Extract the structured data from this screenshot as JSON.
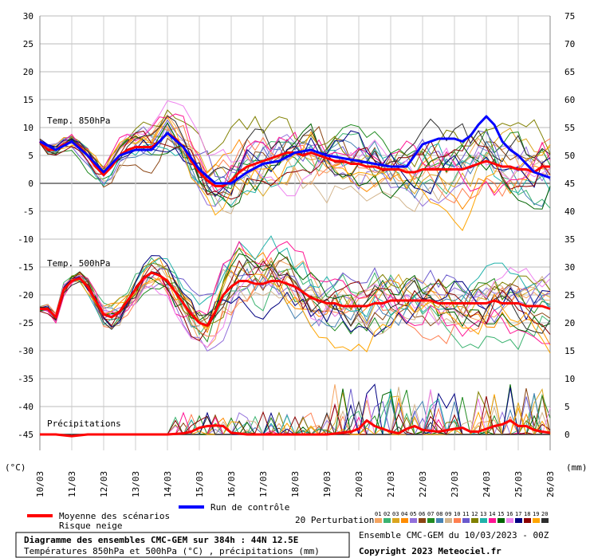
{
  "chart_data": {
    "type": "line",
    "left_axis": {
      "unit": "(°C)",
      "ylim": [
        -50,
        30
      ],
      "ticks": [
        30,
        25,
        20,
        15,
        10,
        5,
        0,
        -5,
        -10,
        -15,
        -20,
        -25,
        -30,
        -35,
        -40,
        -45
      ]
    },
    "right_axis": {
      "unit": "(mm)",
      "ticks": [
        75,
        70,
        65,
        60,
        55,
        50,
        45,
        40,
        35,
        30,
        25,
        20,
        15,
        10,
        5,
        0
      ]
    },
    "x_ticks": [
      "10/03",
      "11/03",
      "12/03",
      "13/03",
      "14/03",
      "15/03",
      "16/03",
      "17/03",
      "18/03",
      "19/03",
      "20/03",
      "21/03",
      "22/03",
      "23/03",
      "24/03",
      "25/03",
      "26/03"
    ],
    "x_range_days": [
      0,
      16
    ],
    "grid": true,
    "section_labels": [
      "Temp. 850hPa",
      "Temp. 500hPa",
      "Précipitations"
    ],
    "series": [
      {
        "name": "Moyenne des scénarios",
        "group": "t850",
        "color": "#ff0000",
        "x": [
          0,
          0.25,
          0.5,
          0.75,
          1,
          1.25,
          1.5,
          1.75,
          2,
          2.25,
          2.5,
          2.75,
          3,
          3.25,
          3.5,
          3.75,
          4,
          4.25,
          4.5,
          4.75,
          5,
          5.25,
          5.5,
          5.75,
          6,
          6.25,
          6.5,
          6.75,
          7,
          7.25,
          7.5,
          7.75,
          8,
          8.25,
          8.5,
          8.75,
          9,
          9.25,
          9.5,
          9.75,
          10,
          10.25,
          10.5,
          10.75,
          11,
          11.25,
          11.5,
          11.75,
          12,
          12.25,
          12.5,
          12.75,
          13,
          13.25,
          13.5,
          13.75,
          14,
          14.25,
          14.5,
          14.75,
          15,
          15.25,
          15.5,
          15.75,
          16
        ],
        "values": [
          7.5,
          6,
          6,
          7,
          7.5,
          6.5,
          5,
          3,
          1.5,
          3,
          5,
          6,
          6.5,
          6.5,
          6.5,
          7.5,
          9,
          8,
          6.5,
          4,
          2,
          0.5,
          -0.5,
          -0.5,
          0.5,
          2,
          3,
          3.5,
          4,
          4.5,
          5,
          5.5,
          5.5,
          5,
          5.5,
          5,
          4.5,
          4,
          4,
          3.5,
          3.5,
          3,
          3,
          2.5,
          2.5,
          2.5,
          2,
          2,
          2.5,
          2.5,
          2.5,
          2.5,
          2.5,
          2.5,
          3,
          3.5,
          4,
          3.5,
          3,
          3,
          2.5,
          2.5,
          2,
          3,
          3
        ]
      },
      {
        "name": "Run de contrôle",
        "group": "t850",
        "color": "#0000ff",
        "x": [
          0,
          0.5,
          1,
          1.5,
          2,
          2.5,
          3,
          3.5,
          4,
          4.5,
          5,
          5.5,
          6,
          6.5,
          7,
          7.5,
          8,
          8.5,
          9,
          9.5,
          10,
          10.5,
          11,
          11.5,
          12,
          12.5,
          13,
          13.25,
          13.5,
          13.75,
          14,
          14.25,
          14.5,
          14.75,
          15,
          15.5,
          16
        ],
        "values": [
          7.5,
          6,
          7.5,
          5,
          2,
          5,
          6,
          6,
          9,
          6.5,
          2.5,
          0,
          0,
          2,
          3.5,
          4,
          5.5,
          6,
          5,
          4.5,
          4,
          3.5,
          3,
          3,
          7,
          8,
          8,
          7.5,
          8.5,
          10.5,
          12,
          10.5,
          7.5,
          6,
          5,
          2,
          1
        ]
      },
      {
        "name": "Moyenne des scénarios",
        "group": "t500",
        "color": "#ff0000",
        "x": [
          0,
          0.25,
          0.5,
          0.75,
          1,
          1.25,
          1.5,
          1.75,
          2,
          2.25,
          2.5,
          2.75,
          3,
          3.25,
          3.5,
          3.75,
          4,
          4.25,
          4.5,
          4.75,
          5,
          5.25,
          5.5,
          5.75,
          6,
          6.25,
          6.5,
          6.75,
          7,
          7.25,
          7.5,
          7.75,
          8,
          8.25,
          8.5,
          8.75,
          9,
          9.25,
          9.5,
          9.75,
          10,
          10.25,
          10.5,
          10.75,
          11,
          11.25,
          11.5,
          11.75,
          12,
          12.25,
          12.5,
          12.75,
          13,
          13.25,
          13.5,
          13.75,
          14,
          14.25,
          14.5,
          14.75,
          15,
          15.25,
          15.5,
          15.75,
          16
        ],
        "values": [
          -22.5,
          -22.5,
          -24,
          -19,
          -17.5,
          -17,
          -18.5,
          -21,
          -23.5,
          -24,
          -23,
          -21,
          -19,
          -17,
          -16,
          -16.5,
          -17.5,
          -19.5,
          -21.5,
          -23.5,
          -25,
          -25.5,
          -23,
          -20,
          -18.5,
          -17.5,
          -17.5,
          -18,
          -18,
          -17.5,
          -17.5,
          -18,
          -18.5,
          -19.5,
          -20.5,
          -21,
          -21.5,
          -21.5,
          -22,
          -22,
          -22,
          -22,
          -21.5,
          -21.5,
          -21,
          -21,
          -21,
          -21,
          -21,
          -21,
          -21.5,
          -21.5,
          -21.5,
          -21.5,
          -21.5,
          -21.5,
          -21.5,
          -21,
          -21.5,
          -21.5,
          -21.5,
          -22,
          -22,
          -22,
          -22.5
        ]
      },
      {
        "name": "Moyenne des scénarios",
        "group": "precip",
        "color": "#ff0000",
        "x": [
          0,
          0.5,
          1,
          1.5,
          2,
          3,
          4,
          4.5,
          4.75,
          5,
          5.25,
          5.5,
          5.75,
          6,
          6.5,
          7,
          8,
          9,
          9.5,
          9.75,
          10,
          10.25,
          10.5,
          10.75,
          11,
          11.25,
          11.5,
          11.75,
          12,
          12.5,
          13,
          13.25,
          13.5,
          13.75,
          14,
          14.25,
          14.5,
          14.75,
          15,
          15.25,
          15.5,
          15.75,
          16
        ],
        "values": [
          0,
          0,
          -0.3,
          0,
          0,
          0,
          0,
          0.2,
          0.5,
          1.2,
          1.5,
          1.6,
          1.5,
          0.3,
          0,
          0,
          0,
          0,
          0.3,
          0.5,
          1,
          2.5,
          1.5,
          1,
          0.5,
          0.2,
          1,
          1.5,
          0.8,
          0.5,
          1,
          1.2,
          0.5,
          0.5,
          1,
          1.5,
          1.8,
          2.5,
          1.5,
          1.5,
          0.8,
          0.5,
          0.3
        ]
      }
    ],
    "legend": {
      "mean_label": "Moyenne des scénarios",
      "snow_label": "Risque neige",
      "control_label": "Run de contrôle",
      "perturbations_label": "20 Perturbations",
      "perturbation_codes": [
        "01",
        "02",
        "03",
        "04",
        "05",
        "06",
        "07",
        "08",
        "09",
        "10",
        "11",
        "12",
        "13",
        "14",
        "15",
        "16",
        "17",
        "18",
        "19",
        "20"
      ],
      "perturbation_colors": [
        "#f4a460",
        "#3cb371",
        "#daa520",
        "#ff8c00",
        "#9370db",
        "#8b4513",
        "#228b22",
        "#4682b4",
        "#d2b48c",
        "#ff7f50",
        "#6a5acd",
        "#808000",
        "#20b2aa",
        "#ff1493",
        "#006400",
        "#ee82ee",
        "#000080",
        "#8b0000",
        "#ffa500",
        "#2e2e2e"
      ]
    }
  },
  "footer": {
    "title": "Diagramme des ensembles CMC-GEM sur 384h : 44N 12.5E",
    "subtitle": "Températures 850hPa et 500hPa (°C) , précipitations (mm)",
    "run_info": "Ensemble CMC-GEM du 10/03/2023 - 00Z",
    "copyright": "Copyright 2023 Meteociel.fr"
  }
}
